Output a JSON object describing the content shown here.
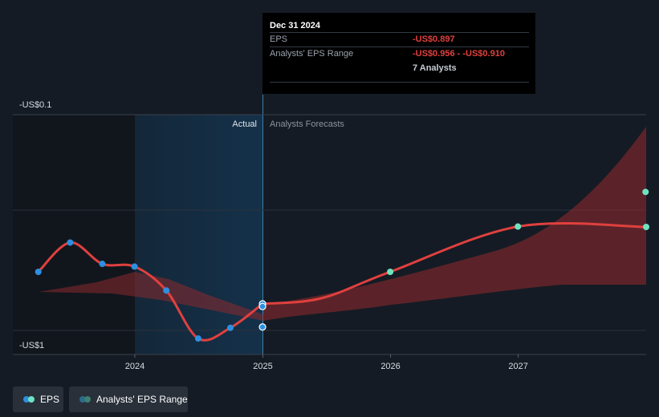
{
  "tooltip": {
    "date": "Dec 31 2024",
    "eps_label": "EPS",
    "eps_value": "-US$0.897",
    "range_label": "Analysts' EPS Range",
    "range_value": "-US$0.956 - -US$0.910",
    "analysts": "7 Analysts"
  },
  "labels": {
    "actual": "Actual",
    "forecast": "Analysts Forecasts"
  },
  "legend": {
    "eps": "EPS",
    "range": "Analysts' EPS Range"
  },
  "colors": {
    "background": "#151b24",
    "eps_line": "#e0403e",
    "actual_dot": "#2e8fe0",
    "forecast_dot": "#6fe3c0",
    "range_fill": "#8a2a2d",
    "highlight": "#14314a"
  },
  "chart_data": {
    "type": "line",
    "y_ticks": [
      "-US$0.1",
      "-US$1"
    ],
    "x_ticks": [
      "2024",
      "2025",
      "2026",
      "2027"
    ],
    "ylim": [
      -1.0,
      -0.1
    ],
    "series": [
      {
        "name": "EPS",
        "points": [
          {
            "x": "2023-03-31",
            "y": -0.69
          },
          {
            "x": "2023-06-30",
            "y": -0.58
          },
          {
            "x": "2023-09-30",
            "y": -0.66
          },
          {
            "x": "2023-12-31",
            "y": -0.67
          },
          {
            "x": "2024-03-31",
            "y": -0.76
          },
          {
            "x": "2024-06-30",
            "y": -0.94
          },
          {
            "x": "2024-09-30",
            "y": -0.9
          },
          {
            "x": "2024-12-31",
            "y": -0.897
          }
        ]
      },
      {
        "name": "Analysts' EPS Range",
        "points": [
          {
            "x": "2024-12-31",
            "y": -0.81
          },
          {
            "x": "2025-12-31",
            "y": -0.69
          },
          {
            "x": "2026-12-31",
            "y": -0.52
          },
          {
            "x": "2027-12-31",
            "y": -0.39
          }
        ]
      }
    ],
    "tooltip_points": [
      {
        "x": "2024-12-31",
        "y": -0.81
      },
      {
        "x": "2024-12-31",
        "y": -0.82
      },
      {
        "x": "2024-12-31",
        "y": -0.897
      }
    ]
  }
}
